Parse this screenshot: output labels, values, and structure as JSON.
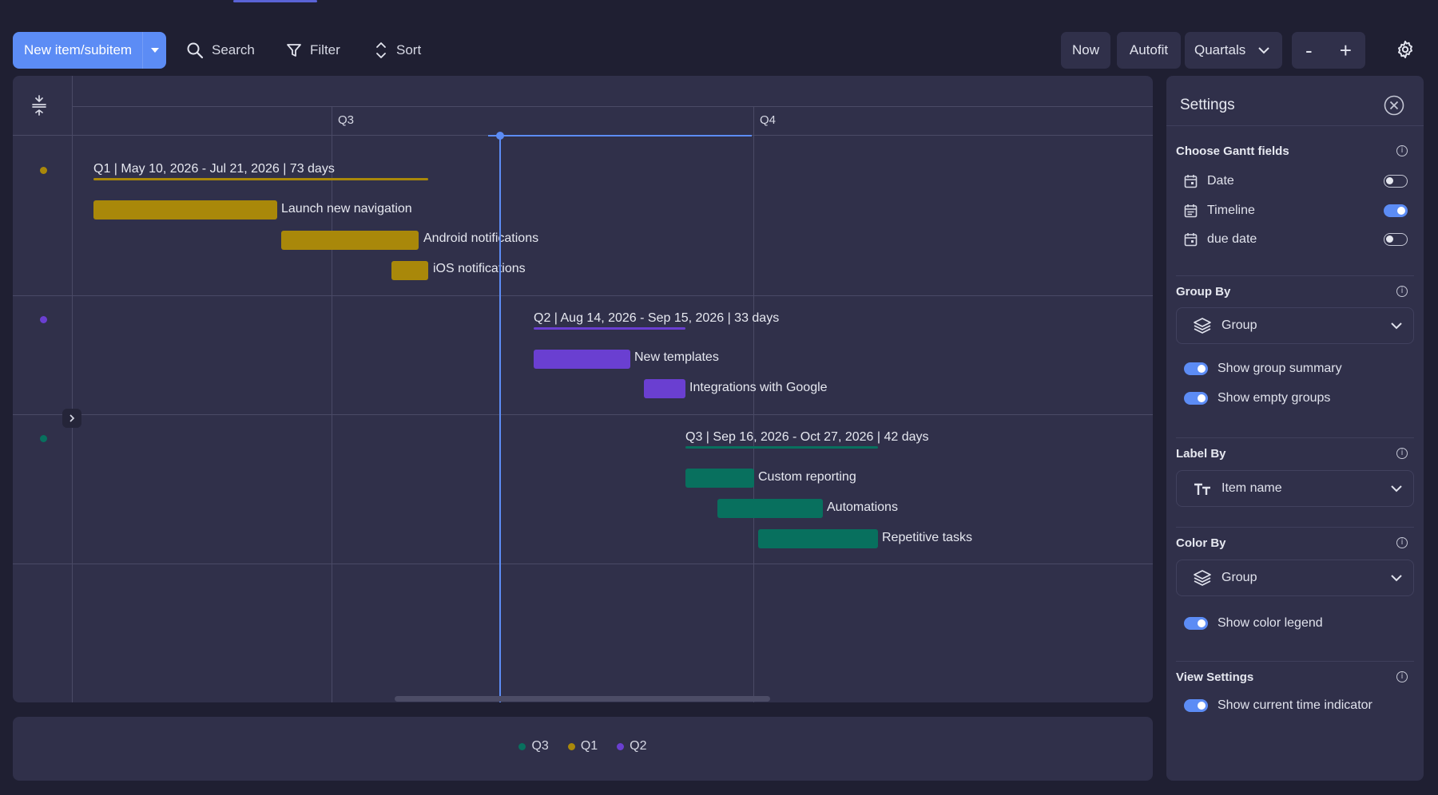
{
  "toolbar": {
    "new_item_label": "New item/subitem",
    "search_label": "Search",
    "filter_label": "Filter",
    "sort_label": "Sort",
    "now_label": "Now",
    "autofit_label": "Autofit",
    "scale_label": "Quartals",
    "zoom_out_label": "-",
    "zoom_in_label": "+"
  },
  "timeline": {
    "quarters": [
      "Q3",
      "Q4"
    ],
    "groups": [
      {
        "color": "#a9880a",
        "summary": "Q1 | May 10, 2026 - Jul 21, 2026 | 73 days",
        "items": [
          "Launch new navigation",
          "Android notifications",
          "iOS notifications"
        ]
      },
      {
        "color": "#6a3fd1",
        "summary": "Q2 | Aug 14, 2026 - Sep 15, 2026 | 33 days",
        "items": [
          "New templates",
          "Integrations with Google"
        ]
      },
      {
        "color": "#08705e",
        "summary": "Q3 | Sep 16, 2026 - Oct 27, 2026 | 42 days",
        "items": [
          "Custom reporting",
          "Automations",
          "Repetitive tasks"
        ]
      }
    ]
  },
  "legend": {
    "items": [
      {
        "label": "Q3",
        "color": "#08705e"
      },
      {
        "label": "Q1",
        "color": "#a9880a"
      },
      {
        "label": "Q2",
        "color": "#6a3fd1"
      }
    ]
  },
  "settings": {
    "title": "Settings",
    "gantt_fields": {
      "heading": "Choose Gantt fields",
      "fields": [
        {
          "label": "Date",
          "enabled": false
        },
        {
          "label": "Timeline",
          "enabled": true
        },
        {
          "label": "due date",
          "enabled": false
        }
      ]
    },
    "group_by": {
      "heading": "Group By",
      "value": "Group",
      "options": [
        {
          "label": "Show group summary",
          "enabled": true
        },
        {
          "label": "Show empty groups",
          "enabled": true
        }
      ]
    },
    "label_by": {
      "heading": "Label By",
      "value": "Item name"
    },
    "color_by": {
      "heading": "Color By",
      "value": "Group",
      "options": [
        {
          "label": "Show color legend",
          "enabled": true
        }
      ]
    },
    "view_settings": {
      "heading": "View Settings",
      "options": [
        {
          "label": "Show current time indicator",
          "enabled": true
        }
      ]
    }
  }
}
